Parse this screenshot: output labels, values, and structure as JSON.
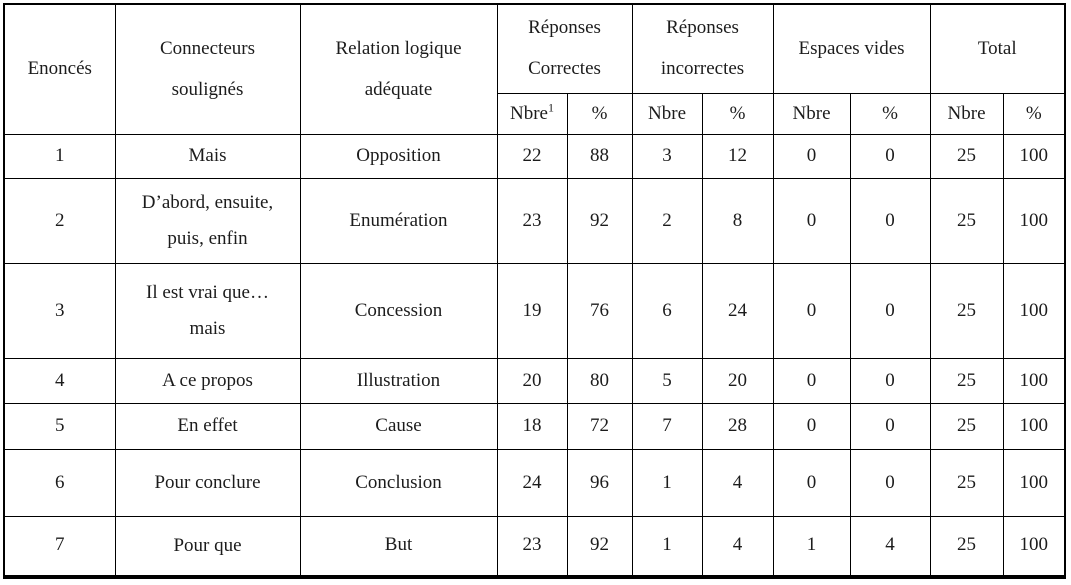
{
  "table": {
    "header": {
      "enonces": "Enoncés",
      "connecteurs": "Connecteurs\nsoulignés",
      "relation": "Relation logique\nadéquate",
      "groups": [
        {
          "label": "Réponses\nCorrectes"
        },
        {
          "label": "Réponses\nincorrectes"
        },
        {
          "label": "Espaces vides"
        },
        {
          "label": "Total"
        }
      ],
      "subheader": [
        {
          "text": "Nbre",
          "sup": "1"
        },
        {
          "text": "%"
        },
        {
          "text": "Nbre"
        },
        {
          "text": "%"
        },
        {
          "text": "Nbre"
        },
        {
          "text": "%"
        },
        {
          "text": "Nbre"
        },
        {
          "text": "%"
        }
      ]
    },
    "rows": [
      {
        "num": "1",
        "connecteur": "Mais",
        "relation": "Opposition",
        "values": [
          "22",
          "88",
          "3",
          "12",
          "0",
          "0",
          "25",
          "100"
        ]
      },
      {
        "num": "2",
        "connecteur": "D’abord, ensuite,\npuis, enfin",
        "relation": "Enumération",
        "values": [
          "23",
          "92",
          "2",
          "8",
          "0",
          "0",
          "25",
          "100"
        ]
      },
      {
        "num": "3",
        "connecteur": "Il est vrai que…\nmais",
        "relation": "Concession",
        "values": [
          "19",
          "76",
          "6",
          "24",
          "0",
          "0",
          "25",
          "100"
        ]
      },
      {
        "num": "4",
        "connecteur": "A ce propos",
        "relation": "Illustration",
        "values": [
          "20",
          "80",
          "5",
          "20",
          "0",
          "0",
          "25",
          "100"
        ]
      },
      {
        "num": "5",
        "connecteur": "En effet",
        "relation": "Cause",
        "values": [
          "18",
          "72",
          "7",
          "28",
          "0",
          "0",
          "25",
          "100"
        ]
      },
      {
        "num": "6",
        "connecteur": "Pour conclure",
        "relation": "Conclusion",
        "values": [
          "24",
          "96",
          "1",
          "4",
          "0",
          "0",
          "25",
          "100"
        ]
      },
      {
        "num": "7",
        "connecteur": "Pour que",
        "relation": "But",
        "values": [
          "23",
          "92",
          "1",
          "4",
          "1",
          "4",
          "25",
          "100"
        ]
      }
    ],
    "colors": {
      "border": "#000000",
      "text": "#1c1c1c",
      "background": "#ffffff"
    }
  }
}
